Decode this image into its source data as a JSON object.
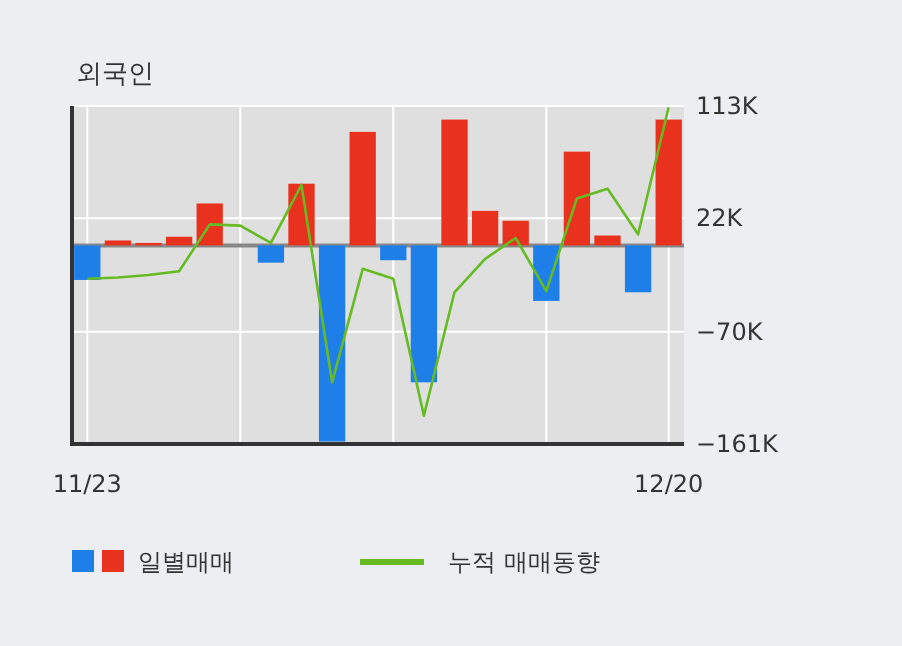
{
  "chart_data": {
    "type": "bar",
    "title": "외국인",
    "categories": [
      "11/23",
      null,
      null,
      null,
      null,
      null,
      null,
      null,
      null,
      null,
      null,
      null,
      null,
      null,
      null,
      null,
      null,
      null,
      null,
      "12/20"
    ],
    "series": [
      {
        "name": "일별매매",
        "colors": [
          "#1e7fe8",
          "#e8321e",
          "#e8321e",
          "#e8321e",
          "#e8321e",
          "#e8321e",
          "#1e7fe8",
          "#e8321e",
          "#1e7fe8",
          "#e8321e",
          "#1e7fe8",
          "#1e7fe8",
          "#e8321e",
          "#e8321e",
          "#e8321e",
          "#1e7fe8",
          "#e8321e",
          "#e8321e",
          "#1e7fe8",
          "#e8321e"
        ],
        "values": [
          -28,
          4,
          2,
          7,
          34,
          0,
          -14,
          50,
          -159,
          92,
          -12,
          -111,
          102,
          28,
          20,
          -45,
          76,
          8,
          -38,
          102
        ]
      },
      {
        "name": "누적 매매동향",
        "type": "line",
        "color": "#66bb22",
        "values": [
          -27,
          -26,
          -24,
          -21,
          17,
          16,
          2,
          49,
          -111,
          -19,
          -27,
          -138,
          -38,
          -11,
          6,
          -37,
          38,
          46,
          9,
          112
        ]
      }
    ],
    "ylim": [
      -161,
      113
    ],
    "yticks": [
      {
        "value": 113,
        "label": "113K"
      },
      {
        "value": 22,
        "label": "22K"
      },
      {
        "value": -70,
        "label": "−70K"
      },
      {
        "value": -161,
        "label": "−161K"
      }
    ],
    "grid": true,
    "legend": "bottom"
  }
}
